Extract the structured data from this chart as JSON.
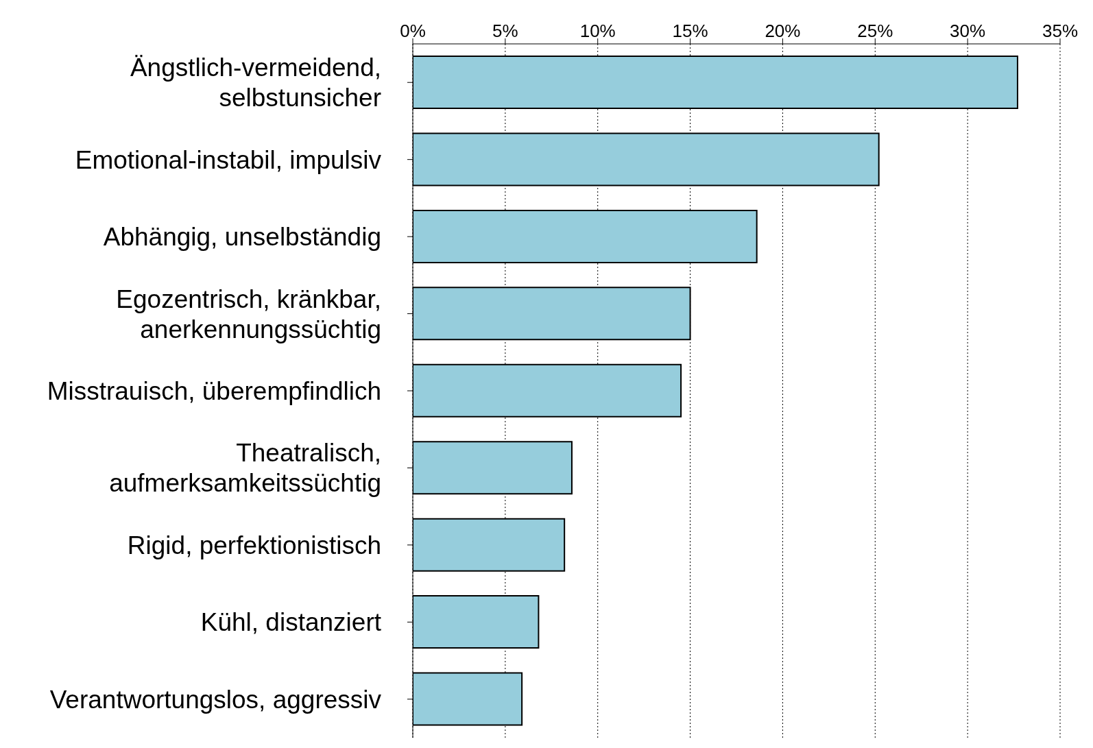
{
  "chart_data": {
    "type": "bar",
    "orientation": "horizontal",
    "categories": [
      "Ängstlich-vermeidend, selbstunsicher",
      "Emotional-instabil, impulsiv",
      "Abhängig, unselbständig",
      "Egozentrisch, kränkbar, anerkennungssüchtig",
      "Misstrauisch, überempfindlich",
      "Theatralisch, aufmerksamkeitssüchtig",
      "Rigid, perfektionistisch",
      "Kühl, distanziert",
      "Verantwortungslos, aggressiv"
    ],
    "values": [
      32.7,
      25.2,
      18.6,
      15.0,
      14.5,
      8.6,
      8.2,
      6.8,
      5.9
    ],
    "color": "#96cddc",
    "xlim": [
      0,
      35
    ],
    "xticks": [
      {
        "value": 0,
        "label": "0%"
      },
      {
        "value": 5,
        "label": "5%"
      },
      {
        "value": 10,
        "label": "10%"
      },
      {
        "value": 15,
        "label": "15%"
      },
      {
        "value": 20,
        "label": "20%"
      },
      {
        "value": 25,
        "label": "25%"
      },
      {
        "value": 30,
        "label": "30%"
      },
      {
        "value": 35,
        "label": "35%"
      }
    ],
    "grid": "x"
  }
}
